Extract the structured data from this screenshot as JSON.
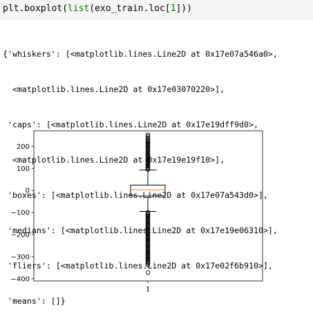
{
  "code": {
    "prefix": "plt.boxplot(",
    "func": "list",
    "middle": "(exo_train.loc[",
    "index": "1",
    "suffix": "]))"
  },
  "output_lines": [
    "{'whiskers': [<matplotlib.lines.Line2D at 0x17e07a546a0>,",
    "  <matplotlib.lines.Line2D at 0x17e03070220>],",
    " 'caps': [<matplotlib.lines.Line2D at 0x17e19dff9d0>,",
    "  <matplotlib.lines.Line2D at 0x17e19e19f10>],",
    " 'boxes': [<matplotlib.lines.Line2D at 0x17e07a543d0>],",
    " 'medians': [<matplotlib.lines.Line2D at 0x17e19e06310>],",
    " 'fliers': [<matplotlib.lines.Line2D at 0x17e02f6b910>],",
    " 'means': []}"
  ],
  "chart_data": {
    "type": "boxplot",
    "categories": [
      "1"
    ],
    "ylim": [
      -410,
      270
    ],
    "yticks": [
      {
        "value": 200,
        "label": "200"
      },
      {
        "value": 100,
        "label": "100"
      },
      {
        "value": 0,
        "label": "0"
      },
      {
        "value": -100,
        "label": "−100"
      },
      {
        "value": -200,
        "label": "−200"
      },
      {
        "value": -300,
        "label": "−300"
      },
      {
        "value": -400,
        "label": "−400"
      }
    ],
    "box": {
      "q1": -25,
      "median": 3,
      "q3": 24,
      "whisker_low": -95,
      "whisker_high": 92
    },
    "fliers_high": [
      95,
      100,
      105,
      110,
      115,
      120,
      125,
      130,
      135,
      140,
      145,
      150,
      155,
      160,
      165,
      170,
      175,
      180,
      185,
      190,
      195,
      200,
      205,
      210,
      215,
      220,
      225,
      230,
      238,
      245,
      252
    ],
    "fliers_low": [
      -100,
      -105,
      -110,
      -115,
      -120,
      -125,
      -130,
      -135,
      -140,
      -145,
      -150,
      -155,
      -160,
      -165,
      -170,
      -175,
      -180,
      -185,
      -190,
      -195,
      -200,
      -205,
      -210,
      -215,
      -220,
      -225,
      -230,
      -235,
      -240,
      -245,
      -250,
      -255,
      -260,
      -265,
      -270,
      -275,
      -280,
      -285,
      -290,
      -295,
      -300,
      -305,
      -310,
      -315,
      -320,
      -325,
      -330,
      -338,
      -372
    ],
    "colors": {
      "box": "#000000",
      "median": "#ff7f0e",
      "flier_edge": "#000000"
    },
    "grid": false
  }
}
